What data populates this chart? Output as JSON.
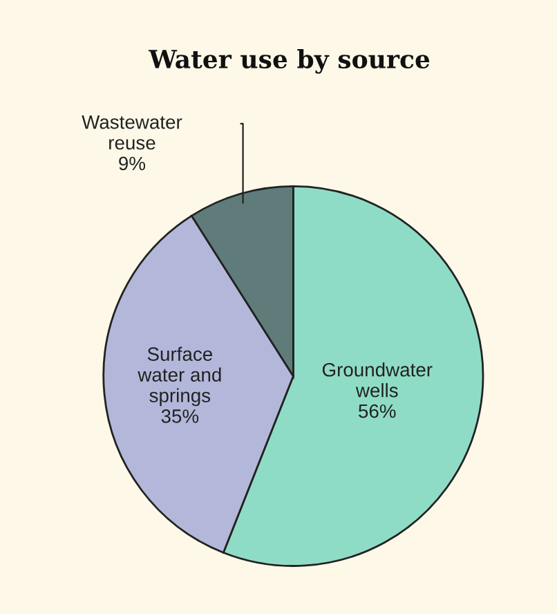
{
  "chart_data": {
    "type": "pie",
    "title": "Water use by source",
    "categories": [
      "Groundwater\nwells",
      "Surface\nwater and\nsprings",
      "Wastewater\nreuse"
    ],
    "values": [
      56,
      35,
      9
    ],
    "value_labels": [
      "56%",
      "35%",
      "9%"
    ],
    "colors": [
      "#8fdcc6",
      "#b3b8da",
      "#5f7c7b"
    ]
  }
}
